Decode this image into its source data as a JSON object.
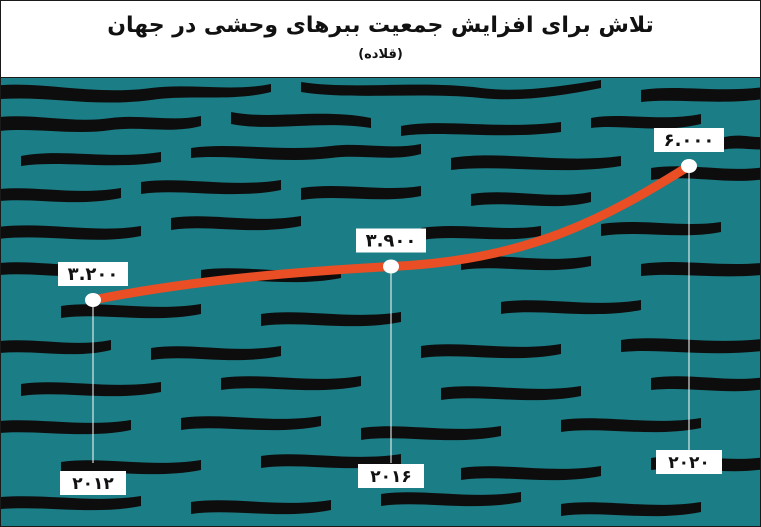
{
  "header": {
    "title": "تلاش برای افزایش جمعیت ببرهای وحشی در جهان",
    "subtitle": "(قلاده)"
  },
  "colors": {
    "background": "#1b7d86",
    "stripes": "#0d0d0d",
    "line": "#e94e24",
    "label_box": "#ffffff"
  },
  "chart_data": {
    "type": "line",
    "title": "تلاش برای افزایش جمعیت ببرهای وحشی در جهان",
    "subtitle": "(قلاده)",
    "x": [
      "۲۰۱۲",
      "۲۰۱۶",
      "۲۰۲۰"
    ],
    "x_values": [
      2012,
      2016,
      2020
    ],
    "series": [
      {
        "values": [
          3200,
          3900,
          6000
        ],
        "value_labels": [
          "۳.۲۰۰",
          "۳.۹۰۰",
          "۶.۰۰۰"
        ]
      }
    ],
    "grid": false,
    "legend": "none"
  }
}
